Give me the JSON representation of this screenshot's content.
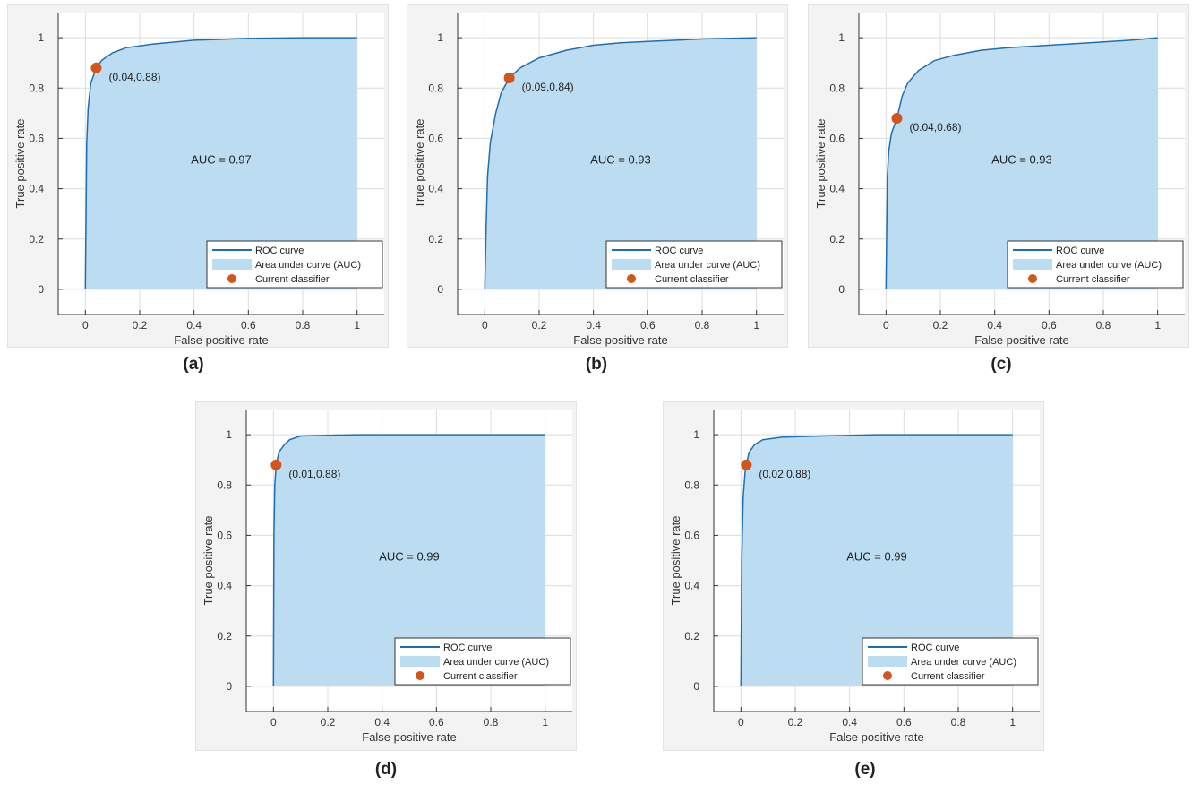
{
  "colors": {
    "panel_bg": "#f3f3f3",
    "plot_bg": "#ffffff",
    "grid": "#dcdcdc",
    "axis": "#333333",
    "roc_line": "#1f6fb0",
    "auc_fill": "#bcdcf2",
    "classifier_point": "#d2561b"
  },
  "chart_data": [
    {
      "type": "area",
      "caption": "(a)",
      "xlabel": "False positive rate",
      "ylabel": "True positive rate",
      "xlim": [
        -0.1,
        1.1
      ],
      "ylim": [
        -0.1,
        1.1
      ],
      "xticks": [
        "0",
        "0.2",
        "0.4",
        "0.6",
        "0.8",
        "1"
      ],
      "yticks": [
        "0",
        "0.2",
        "0.4",
        "0.6",
        "0.8",
        "1"
      ],
      "grid": true,
      "legend_position": "bottom-right",
      "legend": [
        "ROC curve",
        "Area under curve (AUC)",
        "Current classifier"
      ],
      "auc_label": "AUC = 0.97",
      "point": {
        "x": 0.04,
        "y": 0.88,
        "label": "(0.04,0.88)"
      },
      "roc": {
        "x": [
          0,
          0.005,
          0.01,
          0.02,
          0.04,
          0.06,
          0.1,
          0.15,
          0.25,
          0.4,
          0.6,
          0.8,
          1.0
        ],
        "y": [
          0,
          0.58,
          0.72,
          0.82,
          0.88,
          0.91,
          0.94,
          0.96,
          0.975,
          0.99,
          0.997,
          1.0,
          1.0
        ]
      }
    },
    {
      "type": "area",
      "caption": "(b)",
      "xlabel": "False positive rate",
      "ylabel": "True positive rate",
      "xlim": [
        -0.1,
        1.1
      ],
      "ylim": [
        -0.1,
        1.1
      ],
      "xticks": [
        "0",
        "0.2",
        "0.4",
        "0.6",
        "0.8",
        "1"
      ],
      "yticks": [
        "0",
        "0.2",
        "0.4",
        "0.6",
        "0.8",
        "1"
      ],
      "grid": true,
      "legend_position": "bottom-right",
      "legend": [
        "ROC curve",
        "Area under curve (AUC)",
        "Current classifier"
      ],
      "auc_label": "AUC = 0.93",
      "point": {
        "x": 0.09,
        "y": 0.84,
        "label": "(0.09,0.84)"
      },
      "roc": {
        "x": [
          0,
          0.005,
          0.01,
          0.02,
          0.04,
          0.06,
          0.09,
          0.13,
          0.2,
          0.3,
          0.4,
          0.5,
          0.6,
          0.8,
          1.0
        ],
        "y": [
          0,
          0.25,
          0.45,
          0.58,
          0.7,
          0.78,
          0.84,
          0.88,
          0.92,
          0.95,
          0.97,
          0.98,
          0.985,
          0.995,
          1.0
        ]
      }
    },
    {
      "type": "area",
      "caption": "(c)",
      "xlabel": "False positive rate",
      "ylabel": "True positive rate",
      "xlim": [
        -0.1,
        1.1
      ],
      "ylim": [
        -0.1,
        1.1
      ],
      "xticks": [
        "0",
        "0.2",
        "0.4",
        "0.6",
        "0.8",
        "1"
      ],
      "yticks": [
        "0",
        "0.2",
        "0.4",
        "0.6",
        "0.8",
        "1"
      ],
      "grid": true,
      "legend_position": "bottom-right",
      "legend": [
        "ROC curve",
        "Area under curve (AUC)",
        "Current classifier"
      ],
      "auc_label": "AUC = 0.93",
      "point": {
        "x": 0.04,
        "y": 0.68,
        "label": "(0.04,0.68)"
      },
      "roc": {
        "x": [
          0,
          0.005,
          0.01,
          0.02,
          0.04,
          0.06,
          0.08,
          0.12,
          0.18,
          0.25,
          0.35,
          0.45,
          0.6,
          0.75,
          0.9,
          1.0
        ],
        "y": [
          0,
          0.45,
          0.55,
          0.62,
          0.68,
          0.77,
          0.82,
          0.87,
          0.91,
          0.93,
          0.95,
          0.96,
          0.97,
          0.98,
          0.99,
          1.0
        ]
      }
    },
    {
      "type": "area",
      "caption": "(d)",
      "xlabel": "False positive rate",
      "ylabel": "True positive rate",
      "xlim": [
        -0.1,
        1.1
      ],
      "ylim": [
        -0.1,
        1.1
      ],
      "xticks": [
        "0",
        "0.2",
        "0.4",
        "0.6",
        "0.8",
        "1"
      ],
      "yticks": [
        "0",
        "0.2",
        "0.4",
        "0.6",
        "0.8",
        "1"
      ],
      "grid": true,
      "legend_position": "bottom-right",
      "legend": [
        "ROC curve",
        "Area under curve (AUC)",
        "Current classifier"
      ],
      "auc_label": "AUC = 0.99",
      "point": {
        "x": 0.01,
        "y": 0.88,
        "label": "(0.01,0.88)"
      },
      "roc": {
        "x": [
          0,
          0.002,
          0.005,
          0.01,
          0.02,
          0.04,
          0.06,
          0.1,
          0.3,
          0.6,
          1.0
        ],
        "y": [
          0,
          0.6,
          0.8,
          0.88,
          0.93,
          0.96,
          0.98,
          0.995,
          1.0,
          1.0,
          1.0
        ]
      }
    },
    {
      "type": "area",
      "caption": "(e)",
      "xlabel": "False positive rate",
      "ylabel": "True positive rate",
      "xlim": [
        -0.1,
        1.1
      ],
      "ylim": [
        -0.1,
        1.1
      ],
      "xticks": [
        "0",
        "0.2",
        "0.4",
        "0.6",
        "0.8",
        "1"
      ],
      "yticks": [
        "0",
        "0.2",
        "0.4",
        "0.6",
        "0.8",
        "1"
      ],
      "grid": true,
      "legend_position": "bottom-right",
      "legend": [
        "ROC curve",
        "Area under curve (AUC)",
        "Current classifier"
      ],
      "auc_label": "AUC = 0.99",
      "point": {
        "x": 0.02,
        "y": 0.88,
        "label": "(0.02,0.88)"
      },
      "roc": {
        "x": [
          0,
          0.003,
          0.008,
          0.015,
          0.02,
          0.03,
          0.05,
          0.08,
          0.15,
          0.3,
          0.5,
          0.7,
          1.0
        ],
        "y": [
          0,
          0.5,
          0.75,
          0.85,
          0.88,
          0.93,
          0.96,
          0.98,
          0.99,
          0.995,
          1.0,
          1.0,
          1.0
        ]
      }
    }
  ]
}
